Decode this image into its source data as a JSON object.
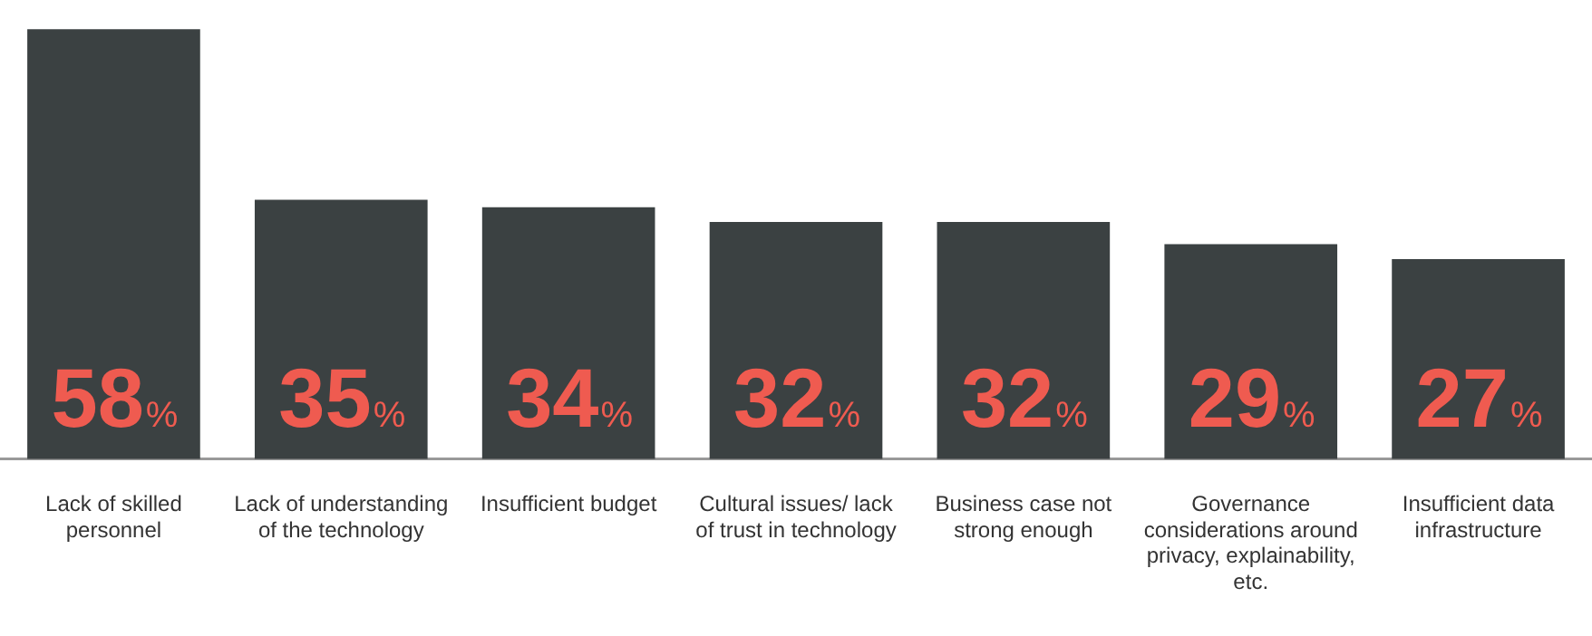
{
  "chart_data": {
    "type": "bar",
    "categories": [
      "Lack of skilled personnel",
      "Lack of understanding of the technology",
      "Insufficient budget",
      "Cultural issues/ lack of trust in technology",
      "Business case not strong enough",
      "Governance considerations around privacy, explainability, etc.",
      "Insufficient data infrastructure"
    ],
    "values": [
      58,
      35,
      34,
      32,
      32,
      29,
      27
    ],
    "color": "#3b4142",
    "value_labels": [
      "58%",
      "35%",
      "34%",
      "32%",
      "32%",
      "29%",
      "27%"
    ],
    "grid": false,
    "legend": false,
    "tick_labels": "x"
  }
}
